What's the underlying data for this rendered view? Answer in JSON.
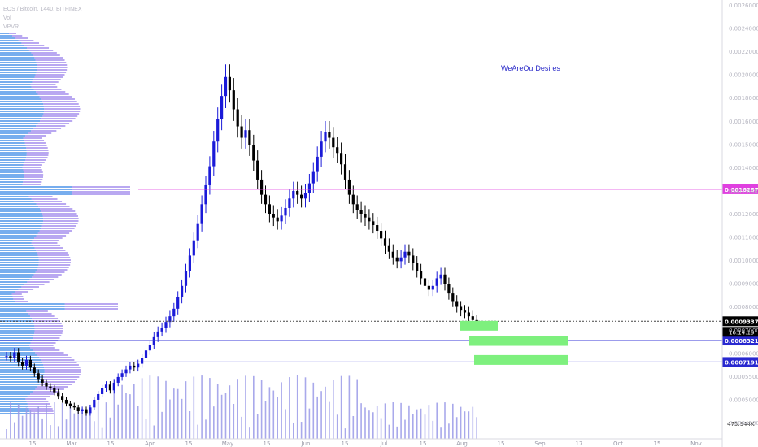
{
  "header": {
    "symbol": "EOS / Bitcoin, 1440, BITFINEX",
    "vol_label": "Vol",
    "vpvr_label": "VPVR"
  },
  "watermark": "WeAreOurDesires",
  "colors": {
    "background": "#ffffff",
    "up_candle": "#1a1ad8",
    "down_candle": "#000000",
    "volume_bar": "#9a9ae8",
    "vpvr_up": "#4a92e8",
    "vpvr_down": "#8a6ee8",
    "price_line": "#e040e0",
    "support_line": "#3a3ad8",
    "dotted_line": "#444444",
    "target_box": "#7ef07e",
    "label_pink": "#e040e0",
    "label_blue": "#2828d0",
    "label_black": "#000000"
  },
  "chart_data": {
    "type": "candlestick",
    "title": "EOS / Bitcoin, 1440, BITFINEX",
    "ylim": [
      0.0004,
      0.0026
    ],
    "y_ticks": [
      "0.00260000",
      "0.00240000",
      "0.00220000",
      "0.00200000",
      "0.00180000",
      "0.00160000",
      "0.00150000",
      "0.00140000",
      "0.00130000",
      "0.00120000",
      "0.00110000",
      "0.00100000",
      "0.00090000",
      "0.00080000",
      "0.00070000",
      "0.00060000",
      "0.00055000",
      "0.00050000",
      "0.00045000"
    ],
    "x_ticks": [
      "15",
      "Mar",
      "15",
      "Apr",
      "15",
      "May",
      "15",
      "Jun",
      "15",
      "Jul",
      "15",
      "Aug",
      "15",
      "Sep",
      "17",
      "Oct",
      "15",
      "Nov"
    ],
    "price_levels": [
      {
        "value": "0.00162878",
        "label": "0.00162878",
        "style": "pink"
      },
      {
        "value": "0.00093376",
        "label": "0.00093376",
        "style": "dotted"
      },
      {
        "value": "0.00083219",
        "label": "0.00083219",
        "style": "blue"
      },
      {
        "value": "0.00071918",
        "label": "0.00071918",
        "style": "blue"
      }
    ],
    "countdown": "16:14:19",
    "volume_label": "475.944K",
    "target_zones": [
      {
        "from": "Aug",
        "to": "Aug",
        "level": 0.00091
      },
      {
        "from": "Aug",
        "to": "Sep",
        "level": 0.00083
      },
      {
        "from": "Aug",
        "to": "Sep",
        "level": 0.00073
      }
    ],
    "close_series": [
      0.00075,
      0.00074,
      0.00077,
      0.00072,
      0.0007,
      0.00073,
      0.00069,
      0.00066,
      0.00063,
      0.00061,
      0.00059,
      0.00058,
      0.00056,
      0.00054,
      0.00052,
      0.0005,
      0.00049,
      0.00048,
      0.00046,
      0.00047,
      0.00045,
      0.00048,
      0.00052,
      0.00055,
      0.00058,
      0.0006,
      0.00057,
      0.00061,
      0.00064,
      0.00066,
      0.00068,
      0.0007,
      0.00069,
      0.00071,
      0.00074,
      0.00078,
      0.00081,
      0.00085,
      0.00088,
      0.0009,
      0.00093,
      0.00096,
      0.001,
      0.00106,
      0.00112,
      0.0012,
      0.00128,
      0.00136,
      0.00145,
      0.00155,
      0.00165,
      0.00175,
      0.00188,
      0.002,
      0.00212,
      0.00222,
      0.00215,
      0.00205,
      0.00196,
      0.0019,
      0.00194,
      0.00186,
      0.00178,
      0.00168,
      0.0016,
      0.00155,
      0.0015,
      0.00148,
      0.00146,
      0.00149,
      0.00153,
      0.00158,
      0.00162,
      0.0016,
      0.00158,
      0.00161,
      0.00166,
      0.00172,
      0.0018,
      0.00188,
      0.00193,
      0.0019,
      0.00185,
      0.00182,
      0.00176,
      0.00168,
      0.0016,
      0.00155,
      0.00152,
      0.0015,
      0.00148,
      0.00146,
      0.00144,
      0.00141,
      0.00137,
      0.00133,
      0.0013,
      0.00127,
      0.00125,
      0.00127,
      0.0013,
      0.00128,
      0.00124,
      0.0012,
      0.00116,
      0.00112,
      0.0011,
      0.00112,
      0.00116,
      0.00118,
      0.00113,
      0.00108,
      0.00104,
      0.00101,
      0.00099,
      0.00098,
      0.00096,
      0.00094,
      0.00093
    ]
  }
}
